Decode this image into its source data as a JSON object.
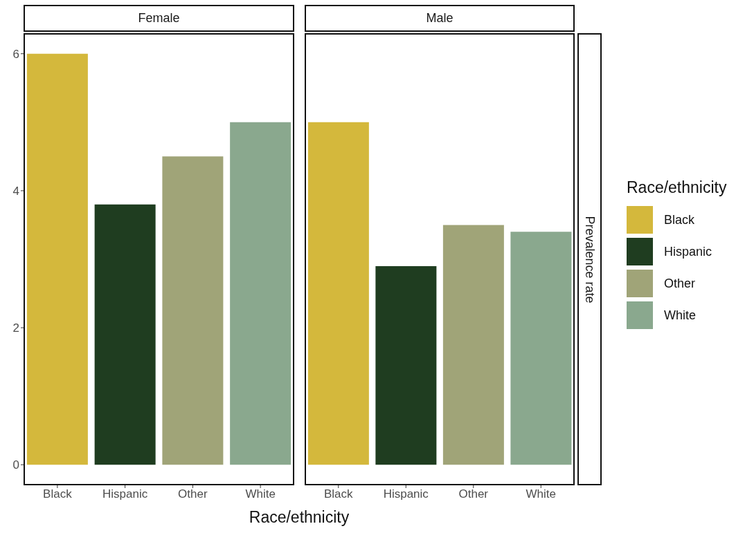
{
  "chart_data": [
    {
      "type": "bar",
      "title": "Female",
      "xlabel": "Race/ethnicity",
      "stacked": true,
      "categories": [
        "Black",
        "Hispanic",
        "Other",
        "White"
      ],
      "ylim": [
        -0.3,
        6.3
      ],
      "yticks": [
        0,
        2,
        4,
        6
      ],
      "series": [
        {
          "color": "#d4b83c",
          "values": [
            6,
            null,
            null,
            null
          ]
        },
        {
          "color": "#1f3d20",
          "values": [
            null,
            3.8,
            null,
            null
          ]
        },
        {
          "color": "#a0a478",
          "values": [
            null,
            null,
            4.5,
            null
          ]
        },
        {
          "color": "#8aa88e",
          "values": [
            null,
            null,
            null,
            5
          ]
        }
      ]
    },
    {
      "type": "bar",
      "title": "Male",
      "ylabel": "Prevalence rate",
      "legend_title": "Race/ethnicity",
      "legend": "right",
      "tick_labels": "x",
      "stacked": true,
      "categories": [
        "Black",
        "Hispanic",
        "Other",
        "White"
      ],
      "ylim": [
        -0.3,
        6.3
      ],
      "yticks": [
        0,
        2,
        4,
        6
      ],
      "series": [
        {
          "name": "Black",
          "color": "#d4b83c",
          "values": [
            5,
            null,
            null,
            null
          ]
        },
        {
          "name": "Hispanic",
          "color": "#1f3d20",
          "values": [
            null,
            2.9,
            null,
            null
          ]
        },
        {
          "name": "Other",
          "color": "#a0a478",
          "values": [
            null,
            null,
            3.5,
            null
          ]
        },
        {
          "name": "White",
          "color": "#8aa88e",
          "values": [
            null,
            null,
            null,
            3.4
          ]
        }
      ]
    }
  ]
}
